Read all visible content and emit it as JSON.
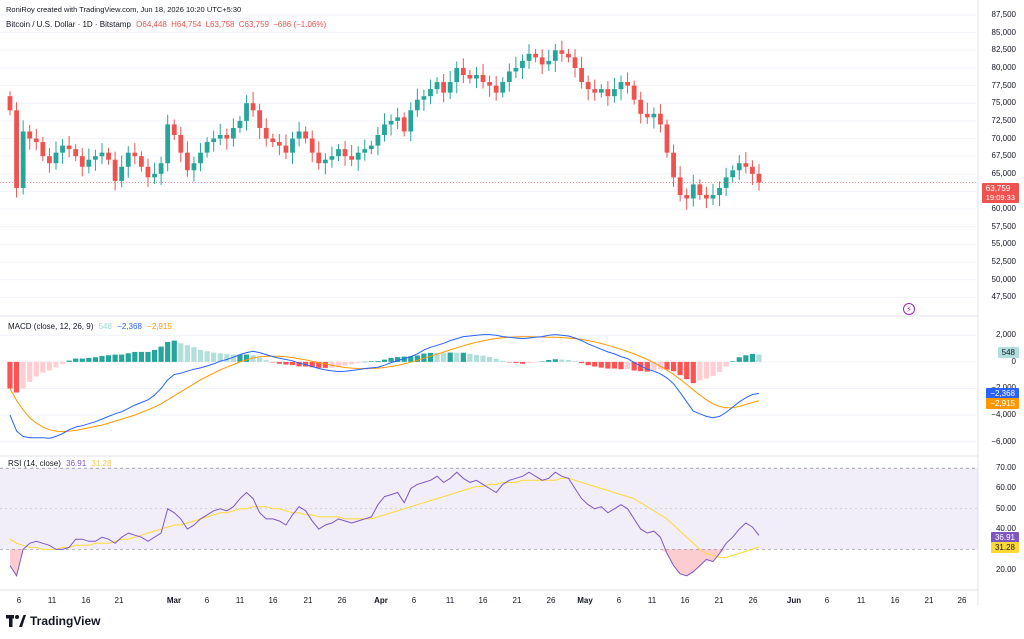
{
  "credit": "RoniRoy created with TradingView.com, Jun 18, 2026 10:20 UTC+5:30",
  "header": {
    "symbol": "Bitcoin / U.S. Dollar · 1D · Bitstamp",
    "open": "O64,448",
    "high": "H64,754",
    "low": "L63,758",
    "close": "C63,759",
    "change": "−686 (−1.06%)"
  },
  "macd_header": {
    "label": "MACD (close, 12, 26, 9)",
    "hist": "548",
    "macd": "−2,368",
    "signal": "−2,915"
  },
  "rsi_header": {
    "label": "RSI (14, close)",
    "rsi": "36.91",
    "ma": "31.28"
  },
  "price_tag": {
    "price": "63,759",
    "countdown": "19:09:33"
  },
  "macd_tags": {
    "hist": "548",
    "macd": "−2,368",
    "signal": "−2,915"
  },
  "rsi_tags": {
    "rsi": "36.91",
    "ma": "31.28"
  },
  "brand": "TradingView",
  "colors": {
    "up": "#26a69a",
    "down": "#ef5350",
    "macd": "#2962ff",
    "signal": "#ff9800",
    "rsi": "#7e57c2",
    "rsi_ma": "#fdd835"
  },
  "chart_data": [
    {
      "type": "candlestick",
      "title": "Bitcoin / U.S. Dollar · 1D · Bitstamp",
      "ylim": [
        45000,
        87500
      ],
      "y_ticks": [
        "87,500",
        "85,000",
        "82,500",
        "80,000",
        "77,500",
        "75,000",
        "72,500",
        "70,000",
        "67,500",
        "65,000",
        "62,500",
        "60,000",
        "57,500",
        "55,000",
        "52,500",
        "50,000",
        "47,500"
      ],
      "x_ticks": [
        "6",
        "11",
        "16",
        "21",
        "Mar",
        "6",
        "11",
        "16",
        "21",
        "26",
        "Apr",
        "6",
        "11",
        "16",
        "21",
        "26",
        "May",
        "6",
        "11",
        "16",
        "21",
        "26",
        "Jun",
        "6",
        "11",
        "16",
        "21",
        "26"
      ],
      "closes": [
        74000,
        63000,
        71000,
        70000,
        69500,
        67500,
        66500,
        68000,
        69000,
        68500,
        67500,
        66000,
        67000,
        67500,
        68000,
        67000,
        64000,
        66000,
        68000,
        67500,
        66000,
        64500,
        65000,
        66500,
        72000,
        70500,
        68000,
        65500,
        66500,
        68000,
        69500,
        70000,
        70500,
        70000,
        71500,
        72500,
        75000,
        74000,
        71500,
        70000,
        69500,
        69000,
        68000,
        70000,
        71000,
        70000,
        68000,
        66500,
        67000,
        67500,
        68500,
        67500,
        67000,
        68000,
        68500,
        69000,
        70500,
        72000,
        72500,
        73000,
        71000,
        74000,
        75500,
        76000,
        77000,
        78000,
        76500,
        78000,
        80000,
        79000,
        78500,
        79000,
        78000,
        77500,
        76500,
        78000,
        79500,
        80000,
        81000,
        82000,
        81500,
        80500,
        81000,
        82500,
        82000,
        81500,
        80000,
        78000,
        77000,
        76500,
        77000,
        76000,
        77000,
        78000,
        77500,
        75500,
        73500,
        73000,
        73500,
        72000,
        68000,
        64500,
        62000,
        61500,
        63500,
        62000,
        61500,
        62000,
        63000,
        64500,
        65500,
        66500,
        66000,
        65000,
        63759
      ],
      "macd": {
        "macd_line": [
          -4000,
          -5200,
          -5600,
          -5700,
          -5700,
          -5700,
          -5750,
          -5600,
          -5400,
          -5100,
          -4900,
          -4800,
          -4650,
          -4500,
          -4300,
          -4100,
          -3900,
          -3750,
          -3500,
          -3250,
          -3050,
          -2850,
          -2500,
          -2000,
          -1350,
          -950,
          -850,
          -700,
          -550,
          -450,
          -300,
          -150,
          50,
          180,
          350,
          550,
          700,
          800,
          700,
          550,
          400,
          280,
          180,
          80,
          -100,
          -200,
          -350,
          -500,
          -600,
          -680,
          -720,
          -700,
          -650,
          -580,
          -500,
          -450,
          -400,
          -250,
          -50,
          100,
          250,
          400,
          600,
          900,
          1100,
          1250,
          1400,
          1600,
          1750,
          1900,
          1950,
          2000,
          2050,
          2050,
          2000,
          1900,
          1850,
          1800,
          1750,
          1800,
          1850,
          1900,
          2000,
          2050,
          2000,
          1950,
          1800,
          1600,
          1350,
          1150,
          950,
          750,
          600,
          400,
          250,
          -50,
          -300,
          -550,
          -700,
          -900,
          -1200,
          -1650,
          -2300,
          -3000,
          -3700,
          -3900,
          -4100,
          -4200,
          -4100,
          -3800,
          -3400,
          -3000,
          -2700,
          -2450,
          -2368
        ],
        "signal_line": [
          -2000,
          -2900,
          -3600,
          -4200,
          -4600,
          -4900,
          -5100,
          -5200,
          -5250,
          -5200,
          -5150,
          -5050,
          -4950,
          -4850,
          -4750,
          -4600,
          -4450,
          -4300,
          -4150,
          -4000,
          -3800,
          -3600,
          -3400,
          -3150,
          -2850,
          -2550,
          -2250,
          -1950,
          -1650,
          -1350,
          -1100,
          -850,
          -600,
          -400,
          -200,
          0,
          150,
          300,
          380,
          420,
          430,
          420,
          380,
          320,
          240,
          150,
          50,
          -50,
          -150,
          -250,
          -350,
          -420,
          -470,
          -500,
          -510,
          -500,
          -470,
          -420,
          -350,
          -260,
          -150,
          -20,
          120,
          270,
          420,
          580,
          740,
          900,
          1060,
          1210,
          1350,
          1470,
          1580,
          1680,
          1760,
          1820,
          1860,
          1880,
          1890,
          1890,
          1880,
          1870,
          1860,
          1850,
          1830,
          1800,
          1750,
          1690,
          1600,
          1500,
          1380,
          1250,
          1100,
          950,
          780,
          600,
          400,
          180,
          -60,
          -330,
          -620,
          -950,
          -1300,
          -1700,
          -2100,
          -2500,
          -2850,
          -3150,
          -3350,
          -3450,
          -3450,
          -3350,
          -3200,
          -3050,
          -2915
        ]
      },
      "rsi": {
        "rsi_line": [
          22,
          17,
          30,
          33,
          34,
          33,
          32,
          30,
          30,
          31,
          35,
          35,
          34,
          34,
          36,
          35,
          33,
          36,
          38,
          37,
          36,
          34,
          36,
          38,
          50,
          48,
          45,
          40,
          42,
          45,
          47,
          49,
          50,
          49,
          51,
          55,
          58,
          55,
          48,
          45,
          45,
          44,
          42,
          47,
          51,
          49,
          44,
          40,
          42,
          43,
          45,
          44,
          43,
          44,
          45,
          46,
          52,
          56,
          57,
          58,
          53,
          60,
          62,
          63,
          64,
          66,
          63,
          65,
          68,
          65,
          63,
          64,
          62,
          60,
          58,
          62,
          64,
          65,
          66,
          68,
          66,
          64,
          65,
          68,
          66,
          65,
          60,
          55,
          52,
          50,
          51,
          48,
          50,
          52,
          50,
          45,
          40,
          38,
          39,
          36,
          28,
          22,
          18,
          17,
          19,
          22,
          25,
          24,
          28,
          33,
          36,
          40,
          43,
          41,
          36.91
        ],
        "ma_line": [
          35,
          33,
          32,
          31,
          31,
          30,
          30,
          30,
          31,
          31,
          32,
          32,
          32,
          33,
          33,
          33,
          34,
          35,
          35,
          36,
          37,
          38,
          39,
          40,
          41,
          42,
          42,
          43,
          44,
          45,
          46,
          47,
          48,
          48,
          49,
          50,
          50,
          51,
          51,
          51,
          50,
          50,
          49,
          48,
          48,
          47,
          47,
          46,
          46,
          46,
          46,
          45,
          45,
          45,
          45,
          45,
          46,
          47,
          48,
          49,
          50,
          51,
          52,
          53,
          54,
          55,
          56,
          57,
          58,
          59,
          60,
          61,
          61,
          62,
          62,
          63,
          63,
          63,
          64,
          64,
          64,
          64,
          64,
          64,
          65,
          65,
          64,
          63,
          62,
          61,
          60,
          59,
          58,
          57,
          56,
          55,
          53,
          51,
          49,
          47,
          45,
          42,
          39,
          36,
          33,
          30,
          28,
          27,
          26,
          26,
          27,
          28,
          29,
          30,
          31.28
        ],
        "ylim": [
          10,
          75
        ],
        "y_ticks": [
          "70.00",
          "60.00",
          "50.00",
          "40.00",
          "30.00",
          "20.00"
        ]
      },
      "macd_y_ticks": [
        "2,000",
        "0",
        "−2,000",
        "−4,000",
        "−6,000"
      ]
    }
  ]
}
